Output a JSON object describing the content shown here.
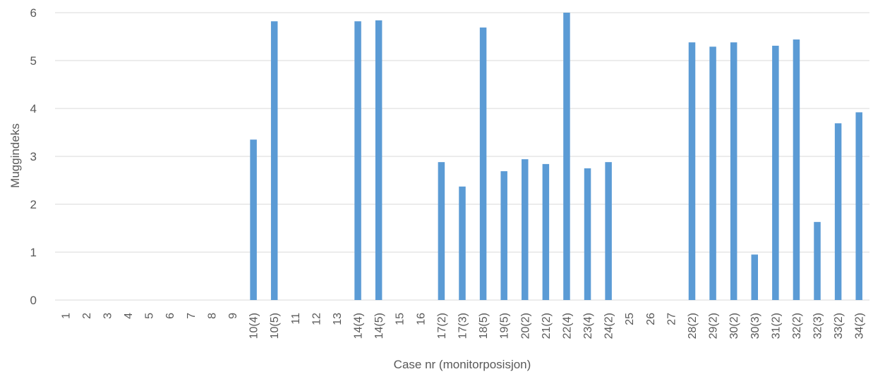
{
  "chart_data": {
    "type": "bar",
    "xlabel": "Case nr (monitorposisjon)",
    "ylabel": "Muggindeks",
    "ylim": [
      0,
      6
    ],
    "yticks": [
      "0",
      "1",
      "2",
      "3",
      "4",
      "5",
      "6"
    ],
    "grid": true,
    "legend": "none",
    "bar_color": "#5b9bd5",
    "categories": [
      "1",
      "2",
      "3",
      "4",
      "5",
      "6",
      "7",
      "8",
      "9",
      "10(4)",
      "10(5)",
      "11",
      "12",
      "13",
      "14(4)",
      "14(5)",
      "15",
      "16",
      "17(2)",
      "17(3)",
      "18(5)",
      "19(5)",
      "20(2)",
      "21(2)",
      "22(4)",
      "23(4)",
      "24(2)",
      "25",
      "26",
      "27",
      "28(2)",
      "29(2)",
      "30(2)",
      "30(3)",
      "31(2)",
      "32(2)",
      "32(3)",
      "33(2)",
      "34(2)"
    ],
    "values": [
      0,
      0,
      0,
      0,
      0,
      0,
      0,
      0,
      0,
      3.35,
      5.82,
      0,
      0,
      0,
      5.82,
      5.84,
      0,
      0,
      2.88,
      2.37,
      5.69,
      2.69,
      2.94,
      2.84,
      6.0,
      2.75,
      2.88,
      0,
      0,
      0,
      5.38,
      5.29,
      5.38,
      0.95,
      5.31,
      5.44,
      1.63,
      3.69,
      3.92
    ]
  }
}
